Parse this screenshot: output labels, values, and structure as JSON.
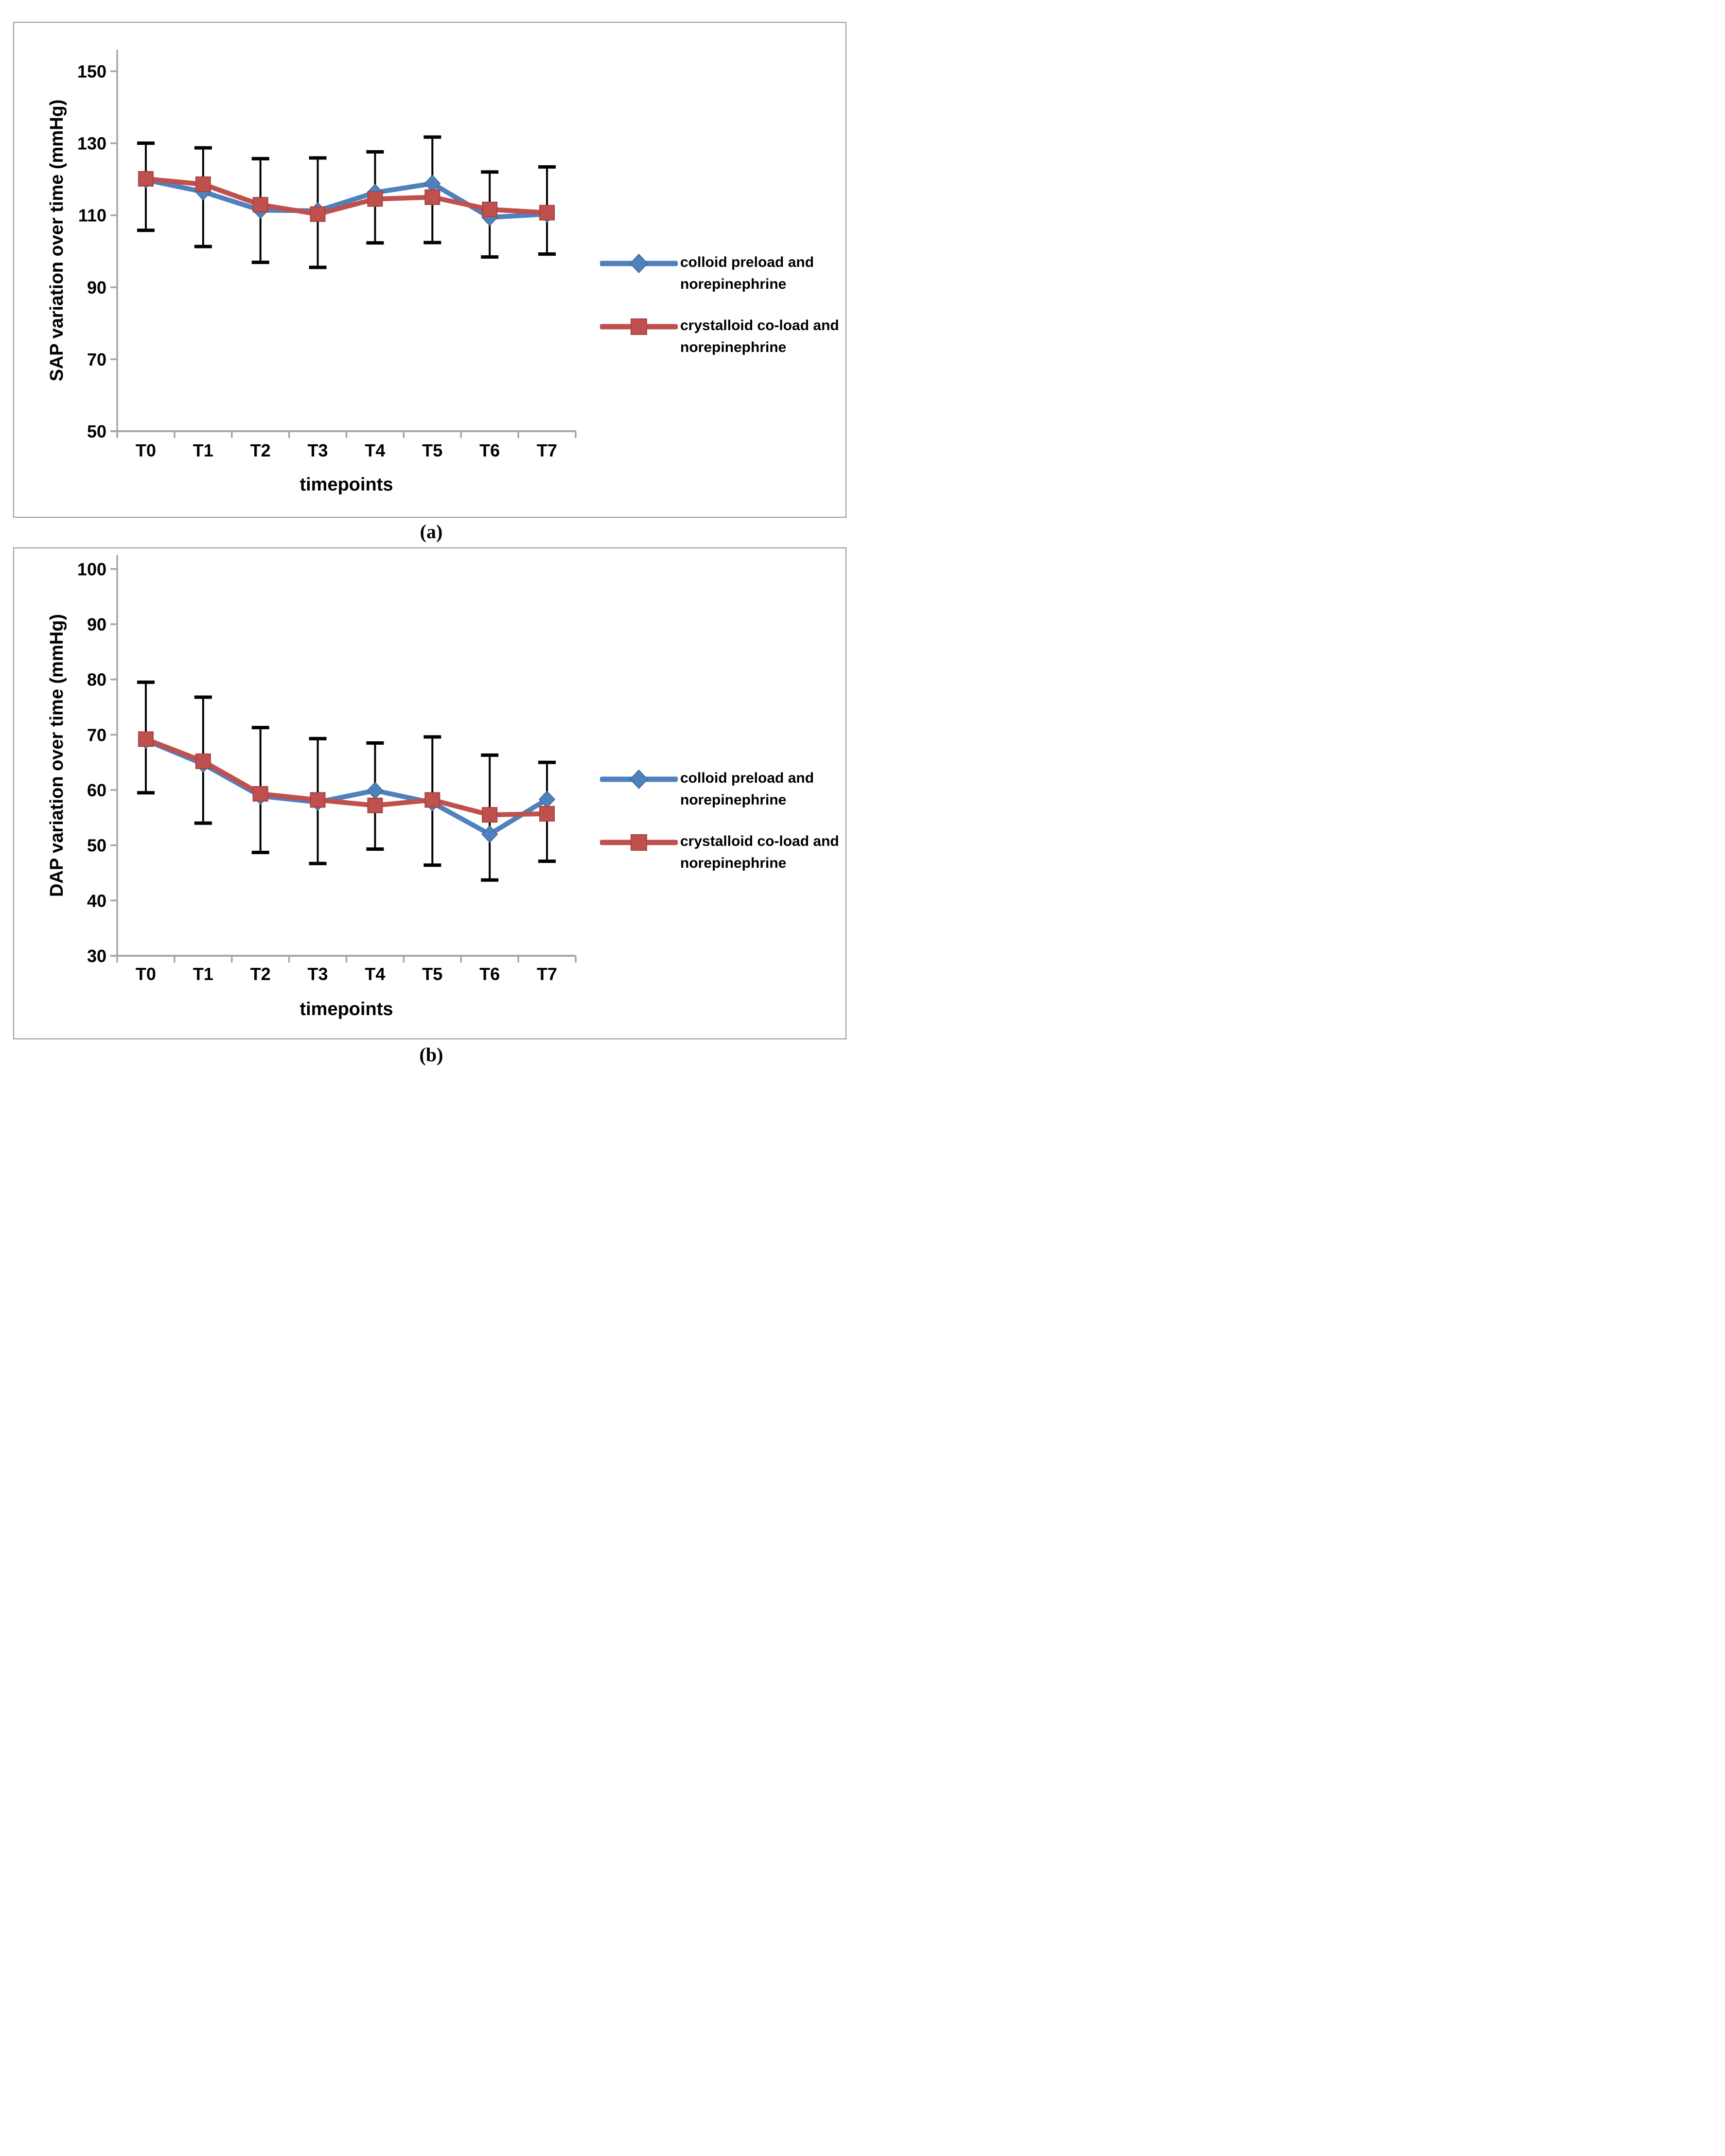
{
  "page": {
    "caption_a": "(a)",
    "caption_b": "(b)"
  },
  "colors": {
    "series_blue": "#4F81BD",
    "series_red": "#C0504D",
    "axis_gray": "#A6A6A6",
    "panel_border_gray": "#999999",
    "error_bar_black": "#000000"
  },
  "chart_data": [
    {
      "panel": "a",
      "type": "line",
      "title": "",
      "xlabel": "timepoints",
      "ylabel": "SAP variation over time (mmHg)",
      "categories": [
        "T0",
        "T1",
        "T2",
        "T3",
        "T4",
        "T5",
        "T6",
        "T7"
      ],
      "ylim": [
        50,
        156
      ],
      "yticks": [
        50,
        70,
        90,
        110,
        130,
        150
      ],
      "grid": false,
      "legend_position": "right",
      "series": [
        {
          "name": "colloid preload and norepinephrine",
          "label_lines": [
            "colloid preload and",
            "norepinephrine"
          ],
          "marker": "diamond",
          "color": "#4F81BD",
          "values": [
            119.8,
            116.5,
            111.4,
            111.2,
            116.3,
            118.8,
            109.4,
            110.3
          ]
        },
        {
          "name": "crystalloid co-load and norepinephrine",
          "label_lines": [
            "crystalloid co-load and",
            "norepinephrine"
          ],
          "marker": "square",
          "color": "#C0504D",
          "values": [
            120.1,
            118.6,
            112.9,
            110.3,
            114.5,
            115.0,
            111.6,
            110.7
          ]
        }
      ],
      "error_bars": {
        "high": [
          130.0,
          128.7,
          125.7,
          125.9,
          127.6,
          131.7,
          122.0,
          123.4
        ],
        "low": [
          105.8,
          101.3,
          96.9,
          95.5,
          102.3,
          102.4,
          98.4,
          99.2
        ]
      }
    },
    {
      "panel": "b",
      "type": "line",
      "title": "",
      "xlabel": "timepoints",
      "ylabel": "DAP variation over time (mmHg)",
      "categories": [
        "T0",
        "T1",
        "T2",
        "T3",
        "T4",
        "T5",
        "T6",
        "T7"
      ],
      "ylim": [
        30,
        102.5
      ],
      "yticks": [
        30,
        40,
        50,
        60,
        70,
        80,
        90,
        100
      ],
      "grid": false,
      "legend_position": "right",
      "series": [
        {
          "name": "colloid preload and norepinephrine",
          "label_lines": [
            "colloid preload and",
            "norepinephrine"
          ],
          "marker": "diamond",
          "color": "#4F81BD",
          "values": [
            69.0,
            64.7,
            58.9,
            57.8,
            59.9,
            57.7,
            52.0,
            58.3
          ]
        },
        {
          "name": "crystalloid co-load and norepinephrine",
          "label_lines": [
            "crystalloid co-load and",
            "norepinephrine"
          ],
          "marker": "square",
          "color": "#C0504D",
          "values": [
            69.2,
            65.2,
            59.3,
            58.2,
            57.2,
            58.2,
            55.5,
            55.7
          ]
        }
      ],
      "error_bars": {
        "high": [
          79.5,
          76.8,
          71.3,
          69.3,
          68.5,
          69.6,
          66.3,
          65.0
        ],
        "low": [
          59.5,
          54.0,
          48.7,
          46.7,
          49.3,
          46.4,
          43.7,
          47.1
        ]
      }
    }
  ]
}
